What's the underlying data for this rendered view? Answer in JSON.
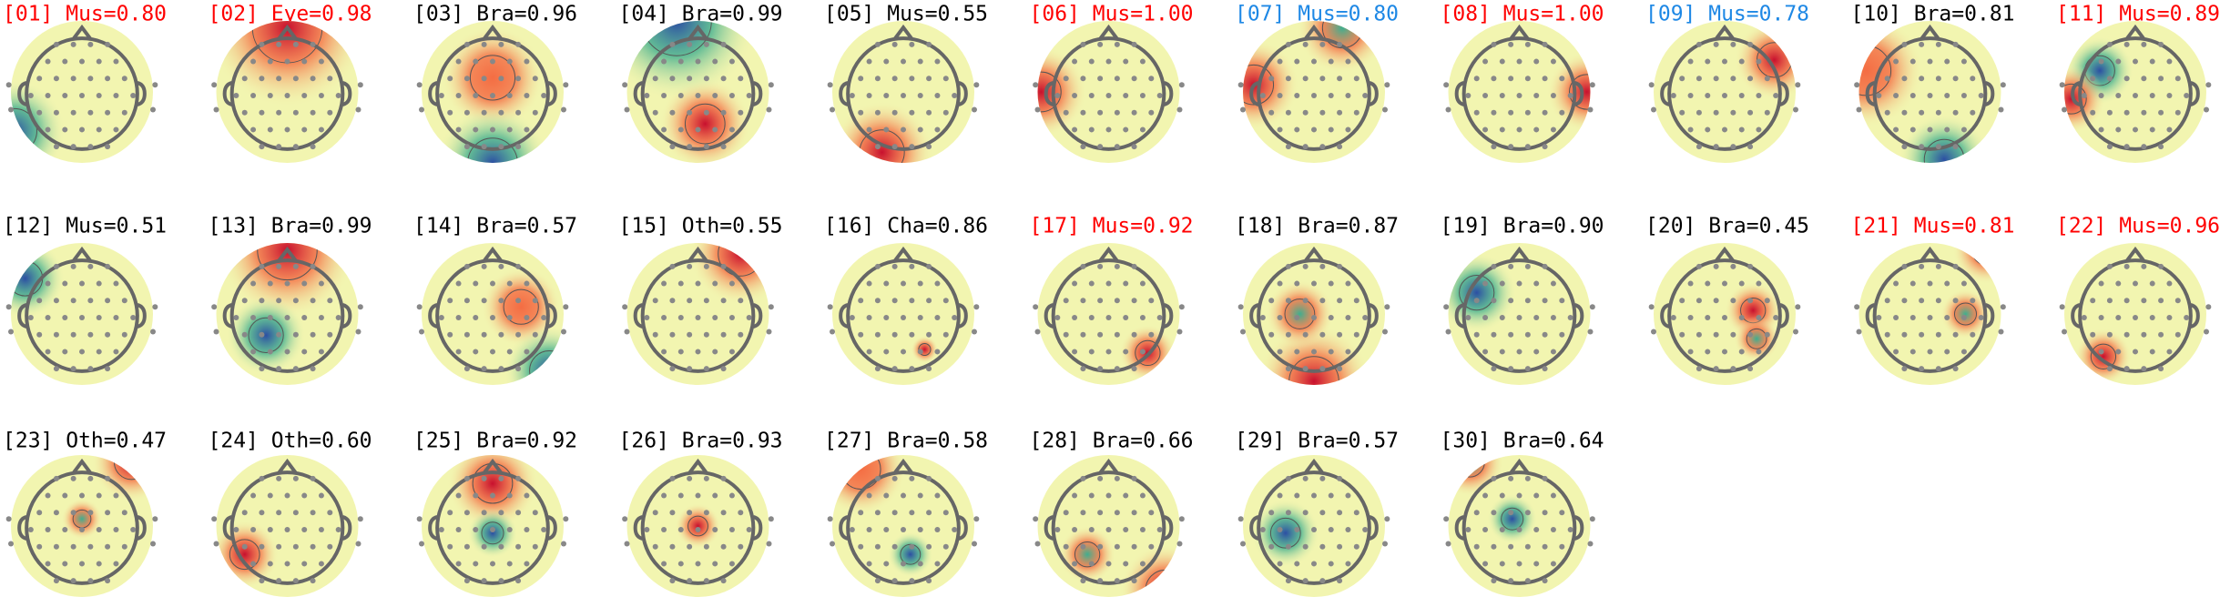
{
  "components": [
    {
      "title": "[01] Mus=0.80",
      "color": "#ff0000"
    },
    {
      "title": "[02] Eye=0.98",
      "color": "#ff0000"
    },
    {
      "title": "[03] Bra=0.96",
      "color": "#000000"
    },
    {
      "title": "[04] Bra=0.99",
      "color": "#000000"
    },
    {
      "title": "[05] Mus=0.55",
      "color": "#000000"
    },
    {
      "title": "[06] Mus=1.00",
      "color": "#ff0000"
    },
    {
      "title": "[07] Mus=0.80",
      "color": "#1e88e5"
    },
    {
      "title": "[08] Mus=1.00",
      "color": "#ff0000"
    },
    {
      "title": "[09] Mus=0.78",
      "color": "#1e88e5"
    },
    {
      "title": "[10] Bra=0.81",
      "color": "#000000"
    },
    {
      "title": "[11] Mus=0.89",
      "color": "#ff0000"
    },
    {
      "title": "[12] Mus=0.51",
      "color": "#000000"
    },
    {
      "title": "[13] Bra=0.99",
      "color": "#000000"
    },
    {
      "title": "[14] Bra=0.57",
      "color": "#000000"
    },
    {
      "title": "[15] Oth=0.55",
      "color": "#000000"
    },
    {
      "title": "[16] Cha=0.86",
      "color": "#000000"
    },
    {
      "title": "[17] Mus=0.92",
      "color": "#ff0000"
    },
    {
      "title": "[18] Bra=0.87",
      "color": "#000000"
    },
    {
      "title": "[19] Bra=0.90",
      "color": "#000000"
    },
    {
      "title": "[20] Bra=0.45",
      "color": "#000000"
    },
    {
      "title": "[21] Mus=0.81",
      "color": "#ff0000"
    },
    {
      "title": "[22] Mus=0.96",
      "color": "#ff0000"
    },
    {
      "title": "[23] Oth=0.47",
      "color": "#000000"
    },
    {
      "title": "[24] Oth=0.60",
      "color": "#000000"
    },
    {
      "title": "[25] Bra=0.92",
      "color": "#000000"
    },
    {
      "title": "[26] Bra=0.93",
      "color": "#000000"
    },
    {
      "title": "[27] Bra=0.58",
      "color": "#000000"
    },
    {
      "title": "[28] Bra=0.66",
      "color": "#000000"
    },
    {
      "title": "[29] Bra=0.57",
      "color": "#000000"
    },
    {
      "title": "[30] Bra=0.64",
      "color": "#000000"
    }
  ]
}
